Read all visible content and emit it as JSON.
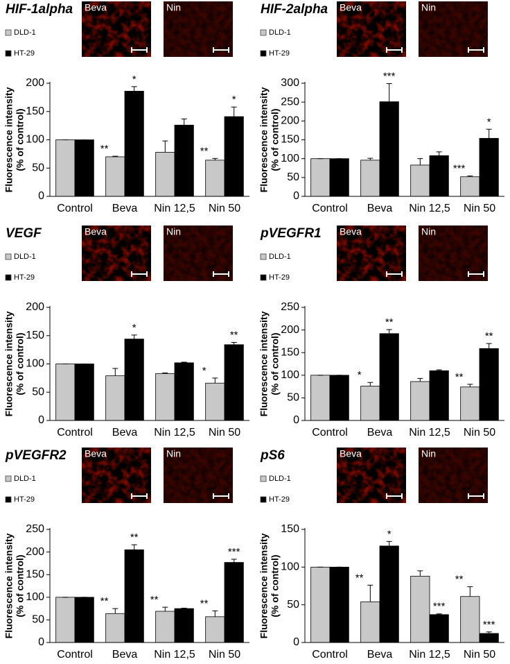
{
  "chart_data": [
    {
      "type": "bar",
      "title": "HIF-1alpha",
      "image_labels": [
        "Beva",
        "Nin"
      ],
      "y_label": [
        "Fluorescence intensity",
        "(% of control)"
      ],
      "categories": [
        "Control",
        "Beva",
        "Nin 12,5",
        "Nin 50"
      ],
      "ylim": [
        0,
        200
      ],
      "yticks": [
        0,
        50,
        100,
        150,
        200
      ],
      "series": [
        {
          "name": "DLD-1",
          "color": "#c8c8c8",
          "values": [
            100,
            70,
            78,
            64
          ],
          "errors": [
            0,
            1,
            20,
            3
          ],
          "stars": [
            null,
            "**",
            null,
            "**"
          ]
        },
        {
          "name": "HT-29",
          "color": "#000000",
          "values": [
            100,
            186,
            126,
            141
          ],
          "errors": [
            0,
            8,
            11,
            17
          ],
          "stars": [
            null,
            "*",
            null,
            "*"
          ]
        }
      ]
    },
    {
      "type": "bar",
      "title": "HIF-2alpha",
      "image_labels": [
        "Beva",
        "Nin"
      ],
      "y_label": [
        "Fluorescence intensity",
        "(% of control)"
      ],
      "categories": [
        "Control",
        "Beva",
        "Nin 12,5",
        "Nin 50"
      ],
      "ylim": [
        0,
        300
      ],
      "yticks": [
        0,
        50,
        100,
        150,
        200,
        250,
        300
      ],
      "series": [
        {
          "name": "DLD-1",
          "color": "#c8c8c8",
          "values": [
            100,
            96,
            83,
            52
          ],
          "errors": [
            0,
            5,
            17,
            2
          ],
          "stars": [
            null,
            null,
            null,
            "***"
          ]
        },
        {
          "name": "HT-29",
          "color": "#000000",
          "values": [
            100,
            251,
            108,
            154
          ],
          "errors": [
            0,
            48,
            10,
            24
          ],
          "stars": [
            null,
            "***",
            null,
            "*"
          ]
        }
      ]
    },
    {
      "type": "bar",
      "title": "VEGF",
      "image_labels": [
        "Beva",
        "Nin"
      ],
      "y_label": [
        "Fluorescence intensity",
        "(% of control)"
      ],
      "categories": [
        "Control",
        "Beva",
        "Nin 12,5",
        "Nin 50"
      ],
      "ylim": [
        0,
        200
      ],
      "yticks": [
        0,
        50,
        100,
        150,
        200
      ],
      "series": [
        {
          "name": "DLD-1",
          "color": "#c8c8c8",
          "values": [
            100,
            79,
            83,
            66
          ],
          "errors": [
            0,
            13,
            1,
            9
          ],
          "stars": [
            null,
            null,
            null,
            "*"
          ]
        },
        {
          "name": "HT-29",
          "color": "#000000",
          "values": [
            100,
            144,
            102,
            134
          ],
          "errors": [
            0,
            7,
            1,
            4
          ],
          "stars": [
            null,
            "*",
            null,
            "**"
          ]
        }
      ]
    },
    {
      "type": "bar",
      "title": "pVEGFR1",
      "image_labels": [
        "Beva",
        "Nin"
      ],
      "y_label": [
        "Fluorescence intensity",
        "(% of control)"
      ],
      "categories": [
        "Control",
        "Beva",
        "Nin 12,5",
        "Nin 50"
      ],
      "ylim": [
        0,
        250
      ],
      "yticks": [
        0,
        50,
        100,
        150,
        200,
        250
      ],
      "series": [
        {
          "name": "DLD-1",
          "color": "#c8c8c8",
          "values": [
            100,
            76,
            86,
            74
          ],
          "errors": [
            0,
            8,
            7,
            6
          ],
          "stars": [
            null,
            "*",
            null,
            "**"
          ]
        },
        {
          "name": "HT-29",
          "color": "#000000",
          "values": [
            100,
            192,
            110,
            159
          ],
          "errors": [
            0,
            9,
            2,
            11
          ],
          "stars": [
            null,
            "**",
            null,
            "**"
          ]
        }
      ]
    },
    {
      "type": "bar",
      "title": "pVEGFR2",
      "image_labels": [
        "Beva",
        "Nin"
      ],
      "y_label": [
        "Fluorescence intensity",
        "(% of control)"
      ],
      "categories": [
        "Control",
        "Beva",
        "Nin 12,5",
        "Nin 50"
      ],
      "ylim": [
        0,
        250
      ],
      "yticks": [
        0,
        50,
        100,
        150,
        200,
        250
      ],
      "series": [
        {
          "name": "DLD-1",
          "color": "#c8c8c8",
          "values": [
            100,
            64,
            69,
            57
          ],
          "errors": [
            0,
            11,
            9,
            13
          ],
          "stars": [
            null,
            "**",
            "**",
            "**"
          ]
        },
        {
          "name": "HT-29",
          "color": "#000000",
          "values": [
            100,
            205,
            75,
            177
          ],
          "errors": [
            0,
            11,
            1,
            7
          ],
          "stars": [
            null,
            "**",
            null,
            "***"
          ]
        }
      ]
    },
    {
      "type": "bar",
      "title": "pS6",
      "image_labels": [
        "Beva",
        "Nin"
      ],
      "y_label": [
        "Fluorescence intensity",
        "(% of control)"
      ],
      "categories": [
        "Control",
        "Beva",
        "Nin 12,5",
        "Nin 50"
      ],
      "ylim": [
        0,
        150
      ],
      "yticks": [
        0,
        50,
        100,
        150
      ],
      "series": [
        {
          "name": "DLD-1",
          "color": "#c8c8c8",
          "values": [
            100,
            54,
            88,
            61
          ],
          "errors": [
            0,
            22,
            7,
            13
          ],
          "stars": [
            null,
            "**",
            null,
            "**"
          ]
        },
        {
          "name": "HT-29",
          "color": "#000000",
          "values": [
            100,
            128,
            37,
            12
          ],
          "errors": [
            0,
            6,
            1,
            2
          ],
          "stars": [
            null,
            "*",
            "***",
            "***"
          ]
        }
      ]
    }
  ]
}
